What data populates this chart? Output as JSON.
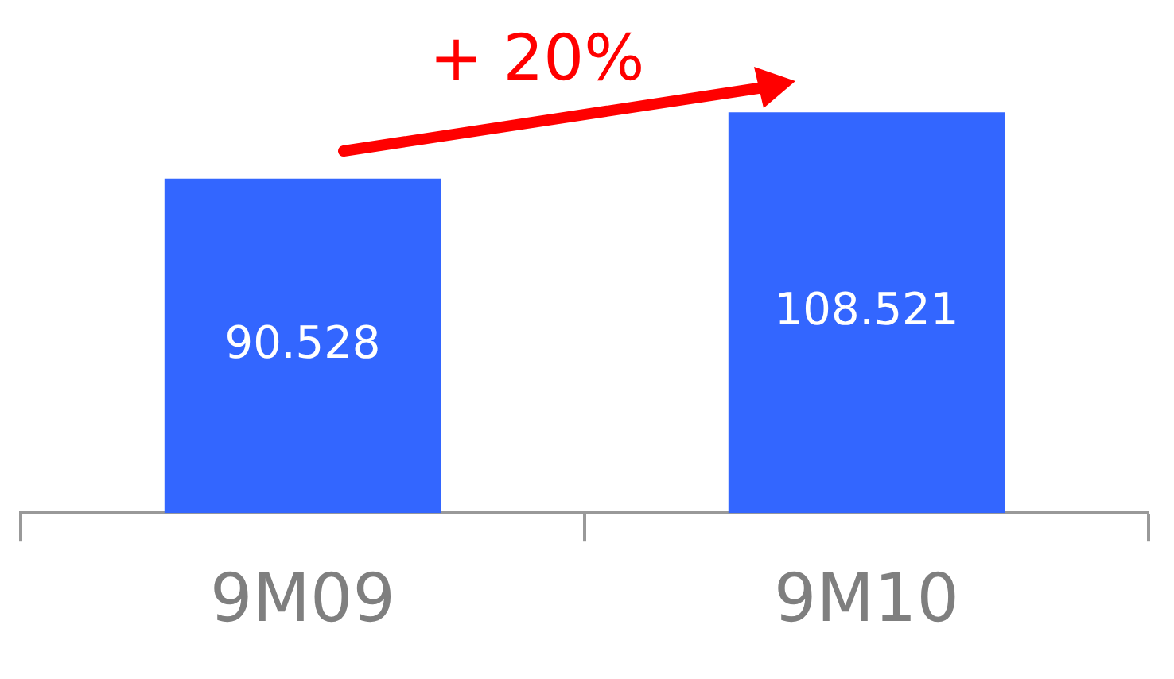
{
  "chart_data": {
    "type": "bar",
    "categories": [
      "9M09",
      "9M10"
    ],
    "values": [
      90.528,
      108.521
    ],
    "color": "#3366ff",
    "data_labels": true,
    "annotations": [
      "+ 20%"
    ],
    "grid": false,
    "legend": false
  }
}
